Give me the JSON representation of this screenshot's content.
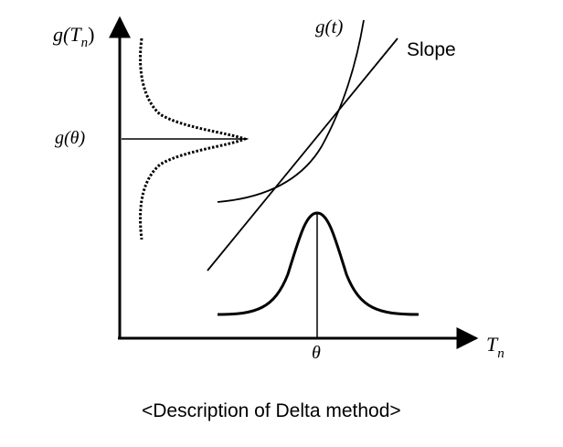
{
  "diagram": {
    "y_axis_label": {
      "g": "g(",
      "T": "T",
      "sub": "n",
      "close": ")"
    },
    "x_axis_label": {
      "T": "T",
      "sub": "n"
    },
    "g_theta_label": "g(θ)",
    "theta_label": "θ",
    "curve_label": "g(t)",
    "slope_label": "Slope",
    "caption": "<Description of Delta method>"
  }
}
